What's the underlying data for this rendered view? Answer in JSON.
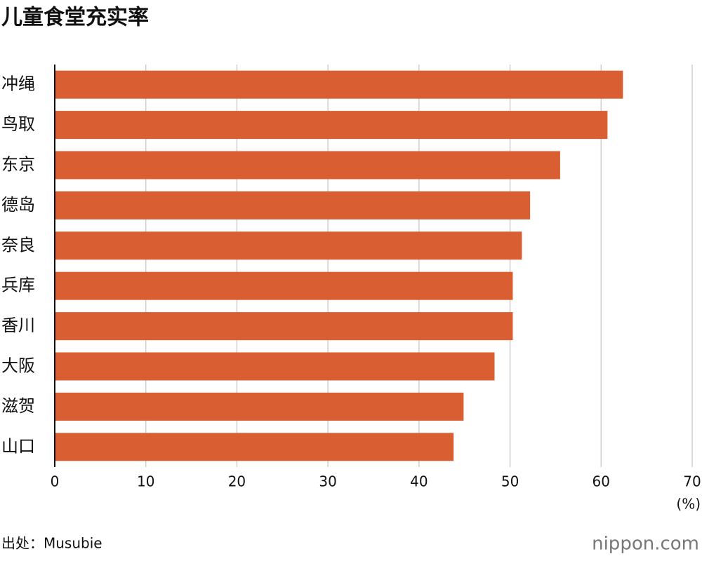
{
  "chart_data": {
    "type": "bar",
    "orientation": "horizontal",
    "title": "儿童食堂充实率",
    "categories": [
      "冲绳",
      "鸟取",
      "东京",
      "德岛",
      "奈良",
      "兵库",
      "香川",
      "大阪",
      "滋贺",
      "山口"
    ],
    "values": [
      62.4,
      60.7,
      55.5,
      52.2,
      51.3,
      50.3,
      50.3,
      48.3,
      44.9,
      43.8
    ],
    "color": "#d95f33",
    "xlim": [
      0,
      70
    ],
    "xticks": [
      0,
      10,
      20,
      30,
      40,
      50,
      60,
      70
    ],
    "grid": true,
    "x_unit": "(%)",
    "source": "出处：Musubie",
    "logo": "nippon.com"
  }
}
